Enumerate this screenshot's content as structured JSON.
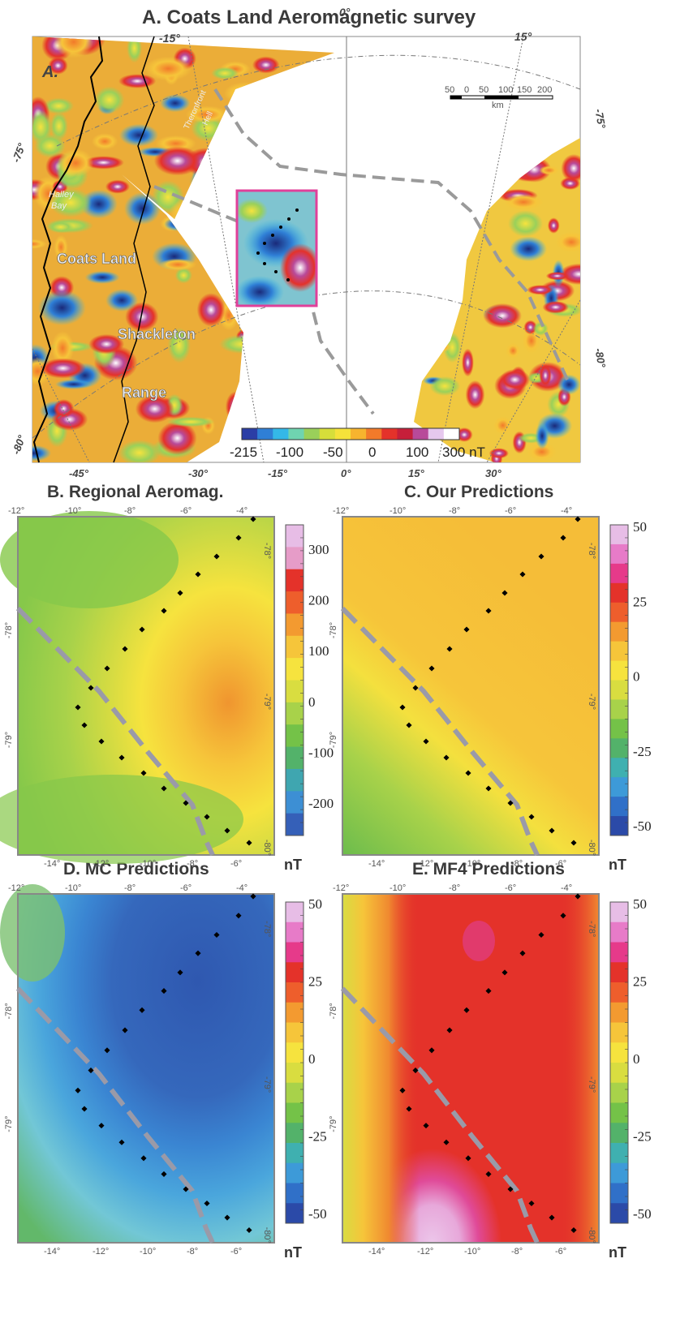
{
  "panelA": {
    "title": "A. Coats Land Aeromagnetic survey",
    "letter": "A.",
    "top_lon_labels": [
      "-15°",
      "0°",
      "15°"
    ],
    "bottom_lon_labels": [
      "-45°",
      "-30°",
      "-15°",
      "0°",
      "15°",
      "30°"
    ],
    "lat_labels": [
      "-75°",
      "-80°"
    ],
    "right_lat_labels": [
      "-75°",
      "-80°"
    ],
    "place_names": [
      "Coats Land",
      "Shackleton",
      "Range",
      "Halley",
      "Bay",
      "Theronfront",
      "Hell"
    ],
    "scale": {
      "ticks": [
        "50",
        "0",
        "50",
        "100",
        "150",
        "200"
      ],
      "unit": "km"
    },
    "colorbar": {
      "labels": [
        "-215",
        "-100",
        "-50",
        "0",
        "100",
        "300 nT"
      ],
      "colors": [
        "#2b3ea6",
        "#2f7fd6",
        "#34b8e8",
        "#6fd4b0",
        "#9ad05a",
        "#d6de3a",
        "#f5e23a",
        "#f7b42e",
        "#f27a2a",
        "#e4322a",
        "#c61f3a",
        "#b84a9a",
        "#e6c8ee",
        "#ffffff"
      ]
    }
  },
  "panelB": {
    "title": "B. Regional Aeromag.",
    "colorbar": {
      "labels": [
        "300",
        "200",
        "100",
        "0",
        "-100",
        "-200"
      ],
      "unit": "nT",
      "colors": [
        "#e7bde6",
        "#e69cc8",
        "#e4322a",
        "#ee5e2c",
        "#f39a30",
        "#f6c53a",
        "#f6e33e",
        "#d9dd40",
        "#a8d24a",
        "#74c248",
        "#53b26a",
        "#3fa6b0",
        "#3d8fd4",
        "#3560b8"
      ]
    }
  },
  "panelC": {
    "title": "C. Our Predictions",
    "colorbar": {
      "labels": [
        "50",
        "25",
        "0",
        "-25",
        "-50"
      ],
      "unit": "nT",
      "colors": [
        "#e7bde6",
        "#e77bc8",
        "#e63a8a",
        "#e4322a",
        "#ee5e2c",
        "#f39a30",
        "#f6c53a",
        "#f6e33e",
        "#d9dd40",
        "#a8d24a",
        "#74c248",
        "#53b26a",
        "#3fb0b0",
        "#3d9ad8",
        "#3070c8",
        "#2b4aa8"
      ]
    }
  },
  "panelD": {
    "title": "D. MC Predictions",
    "colorbar": {
      "labels": [
        "50",
        "25",
        "0",
        "-25",
        "-50"
      ],
      "unit": "nT",
      "colors": [
        "#e7bde6",
        "#e77bc8",
        "#e63a8a",
        "#e4322a",
        "#ee5e2c",
        "#f39a30",
        "#f6c53a",
        "#f6e33e",
        "#d9dd40",
        "#a8d24a",
        "#74c248",
        "#53b26a",
        "#3fb0b0",
        "#3d9ad8",
        "#3070c8",
        "#2b4aa8"
      ]
    }
  },
  "panelE": {
    "title": "E. MF4 Predictions",
    "colorbar": {
      "labels": [
        "50",
        "25",
        "0",
        "-25",
        "-50"
      ],
      "unit": "nT",
      "colors": [
        "#e7bde6",
        "#e77bc8",
        "#e63a8a",
        "#e4322a",
        "#ee5e2c",
        "#f39a30",
        "#f6c53a",
        "#f6e33e",
        "#d9dd40",
        "#a8d24a",
        "#74c248",
        "#53b26a",
        "#3fb0b0",
        "#3d9ad8",
        "#3070c8",
        "#2b4aa8"
      ]
    }
  },
  "grid_axes": {
    "top_lon": [
      "-12°",
      "-10°",
      "-8°",
      "-6°",
      "-4°"
    ],
    "bottom_lon": [
      "-14°",
      "-12°",
      "-10°",
      "-8°",
      "-6°"
    ],
    "left_lat": [
      "-78°",
      "-79°"
    ],
    "right_lat": [
      "-78°",
      "-79°",
      "-80°"
    ]
  }
}
